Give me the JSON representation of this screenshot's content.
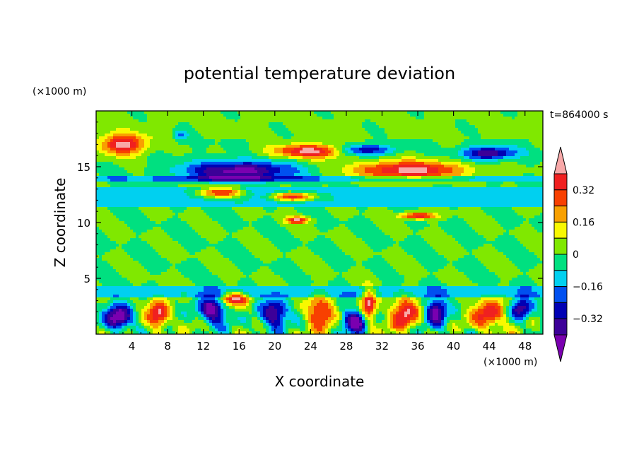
{
  "chart_data": {
    "type": "heatmap",
    "title": "potential temperature deviation",
    "time_label": "t=864000 s",
    "xlabel": "X coordinate",
    "ylabel": "Z coordinate",
    "x_unit": "(×1000 m)",
    "y_unit": "(×1000 m)",
    "xlim": [
      0,
      50
    ],
    "ylim": [
      0,
      20
    ],
    "x_ticks": [
      4,
      8,
      12,
      16,
      20,
      24,
      28,
      32,
      36,
      40,
      44,
      48
    ],
    "x_tick_labels": [
      "4",
      "8",
      "12",
      "16",
      "20",
      "24",
      "28",
      "32",
      "36",
      "40",
      "44",
      "48"
    ],
    "y_ticks": [
      5,
      10,
      15
    ],
    "y_tick_labels": [
      "5",
      "10",
      "15"
    ],
    "colorbar": {
      "levels": [
        -0.4,
        -0.32,
        -0.24,
        -0.16,
        -0.08,
        0,
        0.08,
        0.16,
        0.24,
        0.32,
        0.4
      ],
      "tick_values": [
        0.32,
        0.16,
        0,
        -0.16,
        -0.32
      ],
      "tick_labels": [
        "0.32",
        "0.16",
        "0",
        "−0.16",
        "−0.32"
      ],
      "colors": [
        "#7a00b0",
        "#3c0098",
        "#0000b4",
        "#0050f0",
        "#00d0f0",
        "#00e080",
        "#80e800",
        "#f8f800",
        "#f8a000",
        "#f84000",
        "#f02020",
        "#f8a8a8"
      ]
    },
    "features": [
      {
        "name": "upper-warm-left",
        "x": 3,
        "z": 17,
        "rx": 2.5,
        "rz": 0.9,
        "value": 0.45
      },
      {
        "name": "upper-cold-core",
        "x": 16,
        "z": 14.6,
        "rx": 6,
        "rz": 0.9,
        "value": -0.45
      },
      {
        "name": "upper-warm-center",
        "x": 24,
        "z": 16.4,
        "rx": 4,
        "rz": 0.6,
        "value": 0.45
      },
      {
        "name": "upper-warm-band-right",
        "x": 35,
        "z": 14.7,
        "rx": 6,
        "rz": 0.8,
        "value": 0.45
      },
      {
        "name": "upper-cold-right",
        "x": 44,
        "z": 16.2,
        "rx": 3,
        "rz": 0.6,
        "value": -0.4
      },
      {
        "name": "upper-cold-top",
        "x": 30,
        "z": 16.5,
        "rx": 3,
        "rz": 0.5,
        "value": -0.35
      },
      {
        "name": "mid-warm-left",
        "x": 14,
        "z": 12.7,
        "rx": 2.5,
        "rz": 0.5,
        "value": 0.45
      },
      {
        "name": "mid-warm-center",
        "x": 22,
        "z": 12.3,
        "rx": 2.5,
        "rz": 0.4,
        "value": 0.45
      },
      {
        "name": "mid-warm-patch",
        "x": 22.5,
        "z": 10.2,
        "rx": 1.2,
        "rz": 0.3,
        "value": 0.45
      },
      {
        "name": "mid-warm-patch-right",
        "x": 36,
        "z": 10.6,
        "rx": 2,
        "rz": 0.3,
        "value": 0.4
      },
      {
        "name": "top-cold-spot",
        "x": 9.5,
        "z": 17.8,
        "rx": 0.8,
        "rz": 0.5,
        "value": -0.2
      },
      {
        "name": "low-cold-1",
        "x": 2.5,
        "z": 1.5,
        "rx": 1.5,
        "rz": 1.2,
        "value": -0.45
      },
      {
        "name": "low-warm-1",
        "x": 7,
        "z": 1.8,
        "rx": 1.2,
        "rz": 1.4,
        "value": 0.4
      },
      {
        "name": "low-cold-2",
        "x": 13,
        "z": 2.2,
        "rx": 1.5,
        "rz": 1.2,
        "value": -0.45
      },
      {
        "name": "low-warm-2",
        "x": 15.5,
        "z": 3.2,
        "rx": 1.5,
        "rz": 0.6,
        "value": 0.45
      },
      {
        "name": "low-cold-3",
        "x": 20,
        "z": 1.8,
        "rx": 1.5,
        "rz": 1.2,
        "value": -0.45
      },
      {
        "name": "low-warm-3",
        "x": 25,
        "z": 1.8,
        "rx": 1.5,
        "rz": 1.4,
        "value": 0.4
      },
      {
        "name": "low-warm-4",
        "x": 30.5,
        "z": 2.5,
        "rx": 0.8,
        "rz": 1.6,
        "value": 0.45
      },
      {
        "name": "low-cold-4",
        "x": 29,
        "z": 1.2,
        "rx": 1.5,
        "rz": 1.0,
        "value": -0.45
      },
      {
        "name": "low-warm-5",
        "x": 34.5,
        "z": 1.8,
        "rx": 1.5,
        "rz": 1.4,
        "value": 0.45
      },
      {
        "name": "low-cold-5",
        "x": 38,
        "z": 2.0,
        "rx": 1.2,
        "rz": 1.2,
        "value": -0.45
      },
      {
        "name": "low-warm-6",
        "x": 44,
        "z": 1.8,
        "rx": 1.8,
        "rz": 1.3,
        "value": 0.4
      },
      {
        "name": "low-cold-6",
        "x": 47.5,
        "z": 2.3,
        "rx": 1.2,
        "rz": 1.0,
        "value": -0.4
      }
    ]
  }
}
